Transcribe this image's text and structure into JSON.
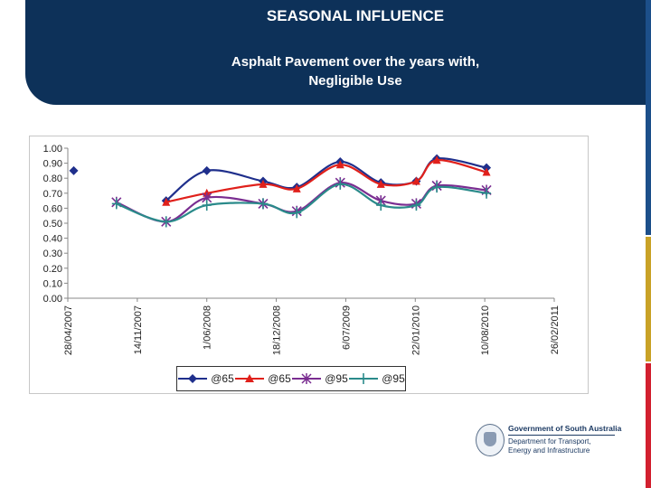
{
  "header": {
    "title": "SEASONAL INFLUENCE",
    "subtitle_line1": "Asphalt Pavement over the years with,",
    "subtitle_line2": "Negligible Use",
    "bg_color": "#0d3159"
  },
  "side_stripes": [
    "#1c4f8a",
    "#c9a227",
    "#d2202f"
  ],
  "logo": {
    "org_line": "Government of South Australia",
    "dept_line1": "Department for Transport,",
    "dept_line2": "Energy and Infrastructure",
    "icon": "state-crest-icon"
  },
  "chart_data": {
    "type": "line",
    "title": "",
    "xlabel": "",
    "ylabel": "",
    "ylim": [
      0,
      1.0
    ],
    "y_ticks": [
      "0.00",
      "0.10",
      "0.20",
      "0.30",
      "0.40",
      "0.50",
      "0.60",
      "0.70",
      "0.80",
      "0.90",
      "1.00"
    ],
    "x_ticks": [
      "28/04/2007",
      "14/11/2007",
      "1/06/2008",
      "18/12/2008",
      "6/07/2009",
      "22/01/2010",
      "10/08/2010",
      "26/02/2011"
    ],
    "x_range": [
      "2007-04-28",
      "2011-02-26"
    ],
    "grid": false,
    "legend_position": "bottom",
    "series": [
      {
        "name": "@65",
        "color": "#1f2f8c",
        "marker": "diamond",
        "points": [
          [
            "2007-05-15",
            0.85
          ],
          [
            "2008-02-05",
            0.65
          ],
          [
            "2008-06-01",
            0.85
          ],
          [
            "2008-11-10",
            0.78
          ],
          [
            "2009-02-15",
            0.74
          ],
          [
            "2009-06-20",
            0.91
          ],
          [
            "2009-10-15",
            0.77
          ],
          [
            "2010-01-25",
            0.78
          ],
          [
            "2010-03-25",
            0.93
          ],
          [
            "2010-08-15",
            0.87
          ]
        ]
      },
      {
        "name": "@65",
        "color": "#e0201b",
        "marker": "triangle",
        "points": [
          [
            "2008-02-05",
            0.64
          ],
          [
            "2008-06-01",
            0.7
          ],
          [
            "2008-11-10",
            0.76
          ],
          [
            "2009-02-15",
            0.73
          ],
          [
            "2009-06-20",
            0.89
          ],
          [
            "2009-10-15",
            0.76
          ],
          [
            "2010-01-25",
            0.78
          ],
          [
            "2010-03-25",
            0.92
          ],
          [
            "2010-08-15",
            0.84
          ]
        ]
      },
      {
        "name": "@95",
        "color": "#7a2d91",
        "marker": "star",
        "points": [
          [
            "2007-09-15",
            0.64
          ],
          [
            "2008-02-05",
            0.51
          ],
          [
            "2008-06-01",
            0.67
          ],
          [
            "2008-11-10",
            0.63
          ],
          [
            "2009-02-15",
            0.58
          ],
          [
            "2009-06-20",
            0.77
          ],
          [
            "2009-10-15",
            0.65
          ],
          [
            "2010-01-25",
            0.63
          ],
          [
            "2010-03-25",
            0.75
          ],
          [
            "2010-08-15",
            0.72
          ]
        ]
      },
      {
        "name": "@95",
        "color": "#2a8a8a",
        "marker": "plus",
        "points": [
          [
            "2007-09-15",
            0.63
          ],
          [
            "2008-02-05",
            0.51
          ],
          [
            "2008-06-01",
            0.62
          ],
          [
            "2008-11-10",
            0.63
          ],
          [
            "2009-02-15",
            0.57
          ],
          [
            "2009-06-20",
            0.76
          ],
          [
            "2009-10-15",
            0.62
          ],
          [
            "2010-01-25",
            0.62
          ],
          [
            "2010-03-25",
            0.74
          ],
          [
            "2010-08-15",
            0.7
          ]
        ]
      }
    ]
  }
}
